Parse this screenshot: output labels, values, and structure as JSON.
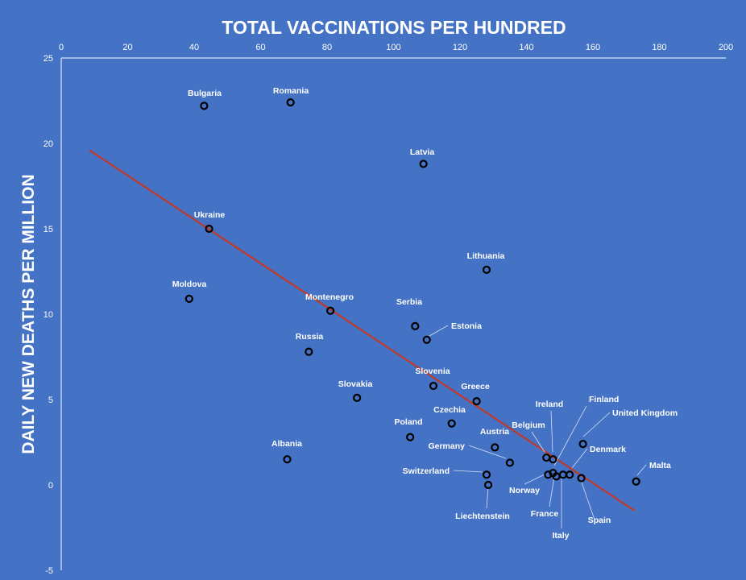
{
  "chart_data": {
    "type": "scatter",
    "title": "TOTAL VACCINATIONS PER HUNDRED",
    "xlabel": "",
    "ylabel": "DAILY NEW DEATHS PER MILLION",
    "xlim": [
      0,
      200
    ],
    "ylim": [
      -5,
      25
    ],
    "x_ticks": [
      0,
      20,
      40,
      60,
      80,
      100,
      120,
      140,
      160,
      180,
      200
    ],
    "y_ticks": [
      -5,
      0,
      5,
      10,
      15,
      20,
      25
    ],
    "x_axis_position": "top",
    "grid": false,
    "legend": "none",
    "marker_color": "#000000",
    "trendline_color": "#c0392b",
    "trendline": {
      "x": [
        8.5,
        172.5
      ],
      "y": [
        19.6,
        -1.5
      ]
    },
    "points": [
      {
        "name": "Bulgaria",
        "x": 43,
        "y": 22.2
      },
      {
        "name": "Romania",
        "x": 69,
        "y": 22.4
      },
      {
        "name": "Latvia",
        "x": 109,
        "y": 18.8
      },
      {
        "name": "Ukraine",
        "x": 44.5,
        "y": 15.0
      },
      {
        "name": "Lithuania",
        "x": 128,
        "y": 12.6
      },
      {
        "name": "Moldova",
        "x": 38.5,
        "y": 10.9
      },
      {
        "name": "Montenegro",
        "x": 81,
        "y": 10.2
      },
      {
        "name": "Serbia",
        "x": 106.5,
        "y": 9.3
      },
      {
        "name": "Estonia",
        "x": 110,
        "y": 8.5
      },
      {
        "name": "Russia",
        "x": 74.5,
        "y": 7.8
      },
      {
        "name": "Slovenia",
        "x": 112,
        "y": 5.8
      },
      {
        "name": "Slovakia",
        "x": 89,
        "y": 5.1
      },
      {
        "name": "Greece",
        "x": 125,
        "y": 4.9
      },
      {
        "name": "Czechia",
        "x": 117.5,
        "y": 3.6
      },
      {
        "name": "Poland",
        "x": 105,
        "y": 2.8
      },
      {
        "name": "Austria",
        "x": 130.5,
        "y": 2.2
      },
      {
        "name": "Germany",
        "x": 135,
        "y": 1.3
      },
      {
        "name": "Albania",
        "x": 68,
        "y": 1.5
      },
      {
        "name": "Switzerland",
        "x": 128,
        "y": 0.6
      },
      {
        "name": "Liechtenstein",
        "x": 128.5,
        "y": 0.0
      },
      {
        "name": "Belgium",
        "x": 146,
        "y": 1.6
      },
      {
        "name": "Ireland",
        "x": 148,
        "y": 1.5
      },
      {
        "name": "Finland",
        "x": 148,
        "y": 0.7
      },
      {
        "name": "United Kingdom",
        "x": 157,
        "y": 2.4
      },
      {
        "name": "Denmark",
        "x": 153,
        "y": 0.6
      },
      {
        "name": "Norway",
        "x": 146.5,
        "y": 0.6
      },
      {
        "name": "France",
        "x": 149,
        "y": 0.5
      },
      {
        "name": "Italy",
        "x": 151,
        "y": 0.6
      },
      {
        "name": "Spain",
        "x": 156.5,
        "y": 0.4
      },
      {
        "name": "Malta",
        "x": 173,
        "y": 0.2
      }
    ]
  }
}
